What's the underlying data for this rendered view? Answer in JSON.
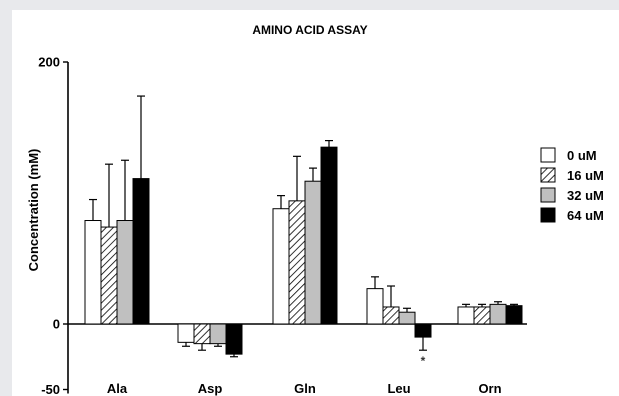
{
  "chart_data": {
    "type": "bar",
    "title": "AMINO ACID ASSAY",
    "ylabel": "Concentration (mM)",
    "xlabel": "",
    "ylim": [
      -50,
      200
    ],
    "y_tick_labels": [
      "200",
      "0",
      "-50"
    ],
    "y_ticks": [
      200,
      0,
      -50
    ],
    "categories": [
      "Ala",
      "Asp",
      "Gln",
      "Leu",
      "Orn"
    ],
    "series": [
      {
        "name": "0 uM",
        "values": [
          79,
          -14,
          88,
          27,
          13
        ],
        "errors": [
          16,
          3,
          10,
          9,
          2
        ],
        "fill": "white"
      },
      {
        "name": "16 uM",
        "values": [
          74,
          -15,
          94,
          13,
          13
        ],
        "errors": [
          48,
          5,
          34,
          16,
          2
        ],
        "fill": "hatch"
      },
      {
        "name": "32 uM",
        "values": [
          79,
          -15,
          109,
          9,
          15
        ],
        "errors": [
          46,
          2,
          10,
          3,
          2
        ],
        "fill": "gray"
      },
      {
        "name": "64 uM",
        "values": [
          111,
          -23,
          135,
          -10,
          14
        ],
        "errors": [
          63,
          2,
          5,
          10,
          1
        ],
        "fill": "black"
      }
    ],
    "annotations": [
      {
        "text": "*",
        "category": "Leu",
        "series": "64 uM"
      }
    ],
    "legend_position": "right",
    "grid": false,
    "colors": {
      "gray": "#c0c0c0",
      "black": "#000000",
      "white": "#ffffff"
    }
  }
}
